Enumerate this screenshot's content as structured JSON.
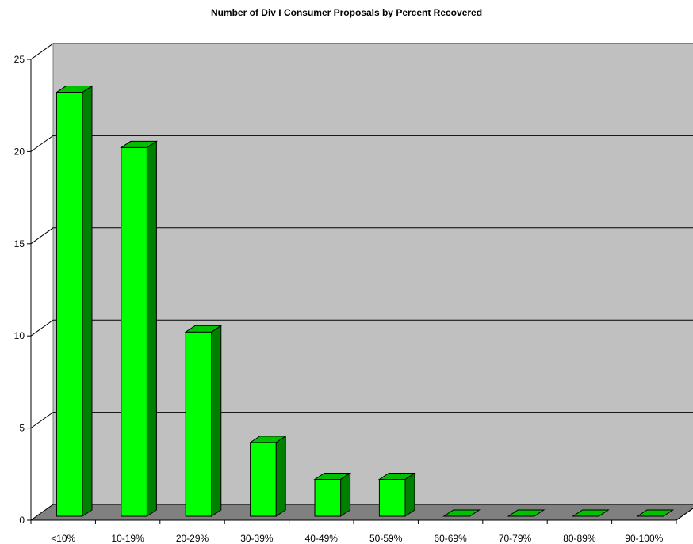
{
  "chart_data": {
    "type": "bar",
    "title": "Number of Div I Consumer Proposals by Percent Recovered",
    "xlabel": "",
    "ylabel": "",
    "categories": [
      "<10%",
      "10-19%",
      "20-29%",
      "30-39%",
      "40-49%",
      "50-59%",
      "60-69%",
      "70-79%",
      "80-89%",
      "90-100%"
    ],
    "values": [
      23,
      20,
      10,
      4,
      2,
      2,
      0,
      0,
      0,
      0
    ],
    "ylim": [
      0,
      25
    ],
    "yticks": [
      0,
      5,
      10,
      15,
      20,
      25
    ],
    "grid": true,
    "style": "3d-column",
    "colors": {
      "bar_front": "#00ff00",
      "bar_side": "#008000",
      "bar_top": "#00c000",
      "back_wall": "#c0c0c0",
      "floor": "#808080",
      "side_wall": "#ffffff"
    }
  }
}
